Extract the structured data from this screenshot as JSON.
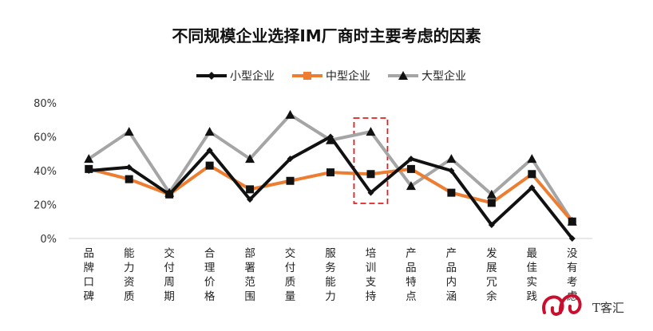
{
  "chart_data": {
    "type": "line",
    "title": "不同规模企业选择IM厂商时主要考虑的因素",
    "categories": [
      "品牌口碑",
      "能力资质",
      "交付周期",
      "合理价格",
      "部署范围",
      "交付质量",
      "服务能力",
      "培训支持",
      "产品特点",
      "产品内涵",
      "发展冗余",
      "最佳实践",
      "没有考虑"
    ],
    "y_ticks": [
      "0%",
      "20%",
      "40%",
      "60%",
      "80%"
    ],
    "ylim": [
      0,
      80
    ],
    "grid": false,
    "legend_position": "top",
    "series": [
      {
        "name": "小型企业",
        "color": "#111111",
        "marker": "diamond",
        "values": [
          40,
          42,
          26,
          52,
          23,
          47,
          60,
          27,
          47,
          40,
          8,
          30,
          0
        ]
      },
      {
        "name": "中型企业",
        "color": "#ED7D31",
        "marker": "square",
        "values": [
          41,
          35,
          26,
          43,
          29,
          34,
          39,
          38,
          41,
          27,
          21,
          38,
          10
        ]
      },
      {
        "name": "大型企业",
        "color": "#A5A5A5",
        "marker": "triangle",
        "values": [
          47,
          63,
          27,
          63,
          47,
          73,
          58,
          63,
          31,
          47,
          26,
          47,
          10
        ]
      }
    ],
    "highlight_category": "培训支持",
    "highlight_color": "#E02020"
  },
  "watermark": {
    "text": "T客汇",
    "logo_color": "#C8102E"
  }
}
